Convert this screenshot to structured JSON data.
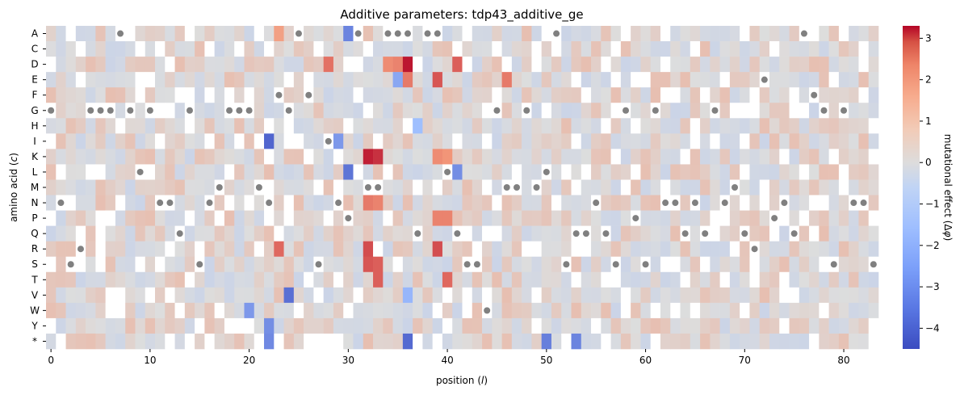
{
  "chart_data": {
    "type": "heatmap",
    "title": "Additive parameters: tdp43_additive_ge",
    "xlabel": "position (l)",
    "ylabel": "amino acid (c)",
    "colorbar_label": "mutational effect (Δφ)",
    "rows": [
      "A",
      "C",
      "D",
      "E",
      "F",
      "G",
      "H",
      "I",
      "K",
      "L",
      "M",
      "N",
      "P",
      "Q",
      "R",
      "S",
      "T",
      "V",
      "W",
      "Y",
      "*"
    ],
    "x_range": [
      0,
      83
    ],
    "x_ticks": [
      0,
      10,
      20,
      30,
      40,
      50,
      60,
      70,
      80
    ],
    "colorbar_ticks": [
      -4,
      -3,
      -2,
      -1,
      0,
      1,
      2,
      3
    ],
    "color_range": [
      -4.5,
      3.3
    ],
    "colormap": "coolwarm",
    "missing_value_color": "#ffffff",
    "wildtype_marker_color": "#808080",
    "wildtype_sequence_positions": {
      "0": "G",
      "1": "N",
      "2": "S",
      "3": "R",
      "4": "G",
      "5": "G",
      "6": "G",
      "7": "A",
      "8": "G",
      "9": "L",
      "10": "G",
      "11": "N",
      "12": "N",
      "13": "Q",
      "14": "G",
      "15": "S",
      "16": "N",
      "17": "M",
      "18": "G",
      "19": "G",
      "20": "G",
      "21": "M",
      "22": "N",
      "23": "F",
      "24": "G",
      "25": "A",
      "26": "F",
      "27": "S",
      "28": "I",
      "29": "N",
      "30": "P",
      "31": "A",
      "32": "M",
      "33": "M",
      "34": "A",
      "35": "A",
      "36": "A",
      "37": "Q",
      "38": "A",
      "39": "A",
      "40": "L",
      "41": "Q",
      "42": "S",
      "43": "S",
      "44": "W",
      "45": "G",
      "46": "M",
      "47": "M",
      "48": "G",
      "49": "M",
      "50": "L",
      "51": "A",
      "52": "S",
      "53": "Q",
      "54": "Q",
      "55": "N",
      "56": "Q",
      "57": "S",
      "58": "G",
      "59": "P",
      "60": "S",
      "61": "G",
      "62": "N",
      "63": "N",
      "64": "Q",
      "65": "N",
      "66": "Q",
      "67": "G",
      "68": "N",
      "69": "M",
      "70": "Q",
      "71": "R",
      "72": "E",
      "73": "P",
      "74": "N",
      "75": "Q",
      "76": "A",
      "77": "F",
      "78": "G",
      "79": "S",
      "80": "G",
      "81": "N",
      "82": "N",
      "83": "S"
    },
    "high_effect_cells": [
      {
        "row": "K",
        "x": 32,
        "value": 3.0
      },
      {
        "row": "K",
        "x": 33,
        "value": 2.8
      },
      {
        "row": "D",
        "x": 36,
        "value": 3.1
      },
      {
        "row": "D",
        "x": 35,
        "value": 1.9
      },
      {
        "row": "D",
        "x": 34,
        "value": 1.8
      },
      {
        "row": "D",
        "x": 41,
        "value": 2.3
      },
      {
        "row": "D",
        "x": 28,
        "value": 2.1
      },
      {
        "row": "E",
        "x": 39,
        "value": 2.4
      },
      {
        "row": "E",
        "x": 36,
        "value": 2.0
      },
      {
        "row": "E",
        "x": 46,
        "value": 2.0
      },
      {
        "row": "R",
        "x": 32,
        "value": 2.5
      },
      {
        "row": "R",
        "x": 39,
        "value": 2.5
      },
      {
        "row": "R",
        "x": 23,
        "value": 2.2
      },
      {
        "row": "S",
        "x": 32,
        "value": 2.4
      },
      {
        "row": "S",
        "x": 33,
        "value": 2.3
      },
      {
        "row": "T",
        "x": 33,
        "value": 2.3
      },
      {
        "row": "T",
        "x": 40,
        "value": 2.2
      },
      {
        "row": "N",
        "x": 32,
        "value": 2.0
      },
      {
        "row": "N",
        "x": 33,
        "value": 1.9
      },
      {
        "row": "P",
        "x": 39,
        "value": 1.9
      },
      {
        "row": "P",
        "x": 40,
        "value": 1.9
      },
      {
        "row": "K",
        "x": 39,
        "value": 1.8
      },
      {
        "row": "K",
        "x": 40,
        "value": 1.7
      },
      {
        "row": "A",
        "x": 23,
        "value": 1.5
      }
    ],
    "low_effect_cells": [
      {
        "row": "I",
        "x": 22,
        "value": -4.0
      },
      {
        "row": "V",
        "x": 24,
        "value": -3.8
      },
      {
        "row": "L",
        "x": 30,
        "value": -3.7
      },
      {
        "row": "L",
        "x": 41,
        "value": -3.2
      },
      {
        "row": "A",
        "x": 30,
        "value": -3.4
      },
      {
        "row": "*",
        "x": 36,
        "value": -3.9
      },
      {
        "row": "*",
        "x": 50,
        "value": -3.5
      },
      {
        "row": "*",
        "x": 53,
        "value": -3.4
      },
      {
        "row": "*",
        "x": 22,
        "value": -3.3
      },
      {
        "row": "E",
        "x": 35,
        "value": -2.7
      },
      {
        "row": "I",
        "x": 29,
        "value": -3.0
      },
      {
        "row": "W",
        "x": 20,
        "value": -3.0
      },
      {
        "row": "Y",
        "x": 22,
        "value": -3.2
      },
      {
        "row": "V",
        "x": 36,
        "value": -2.4
      },
      {
        "row": "H",
        "x": 37,
        "value": -2.2
      }
    ]
  }
}
